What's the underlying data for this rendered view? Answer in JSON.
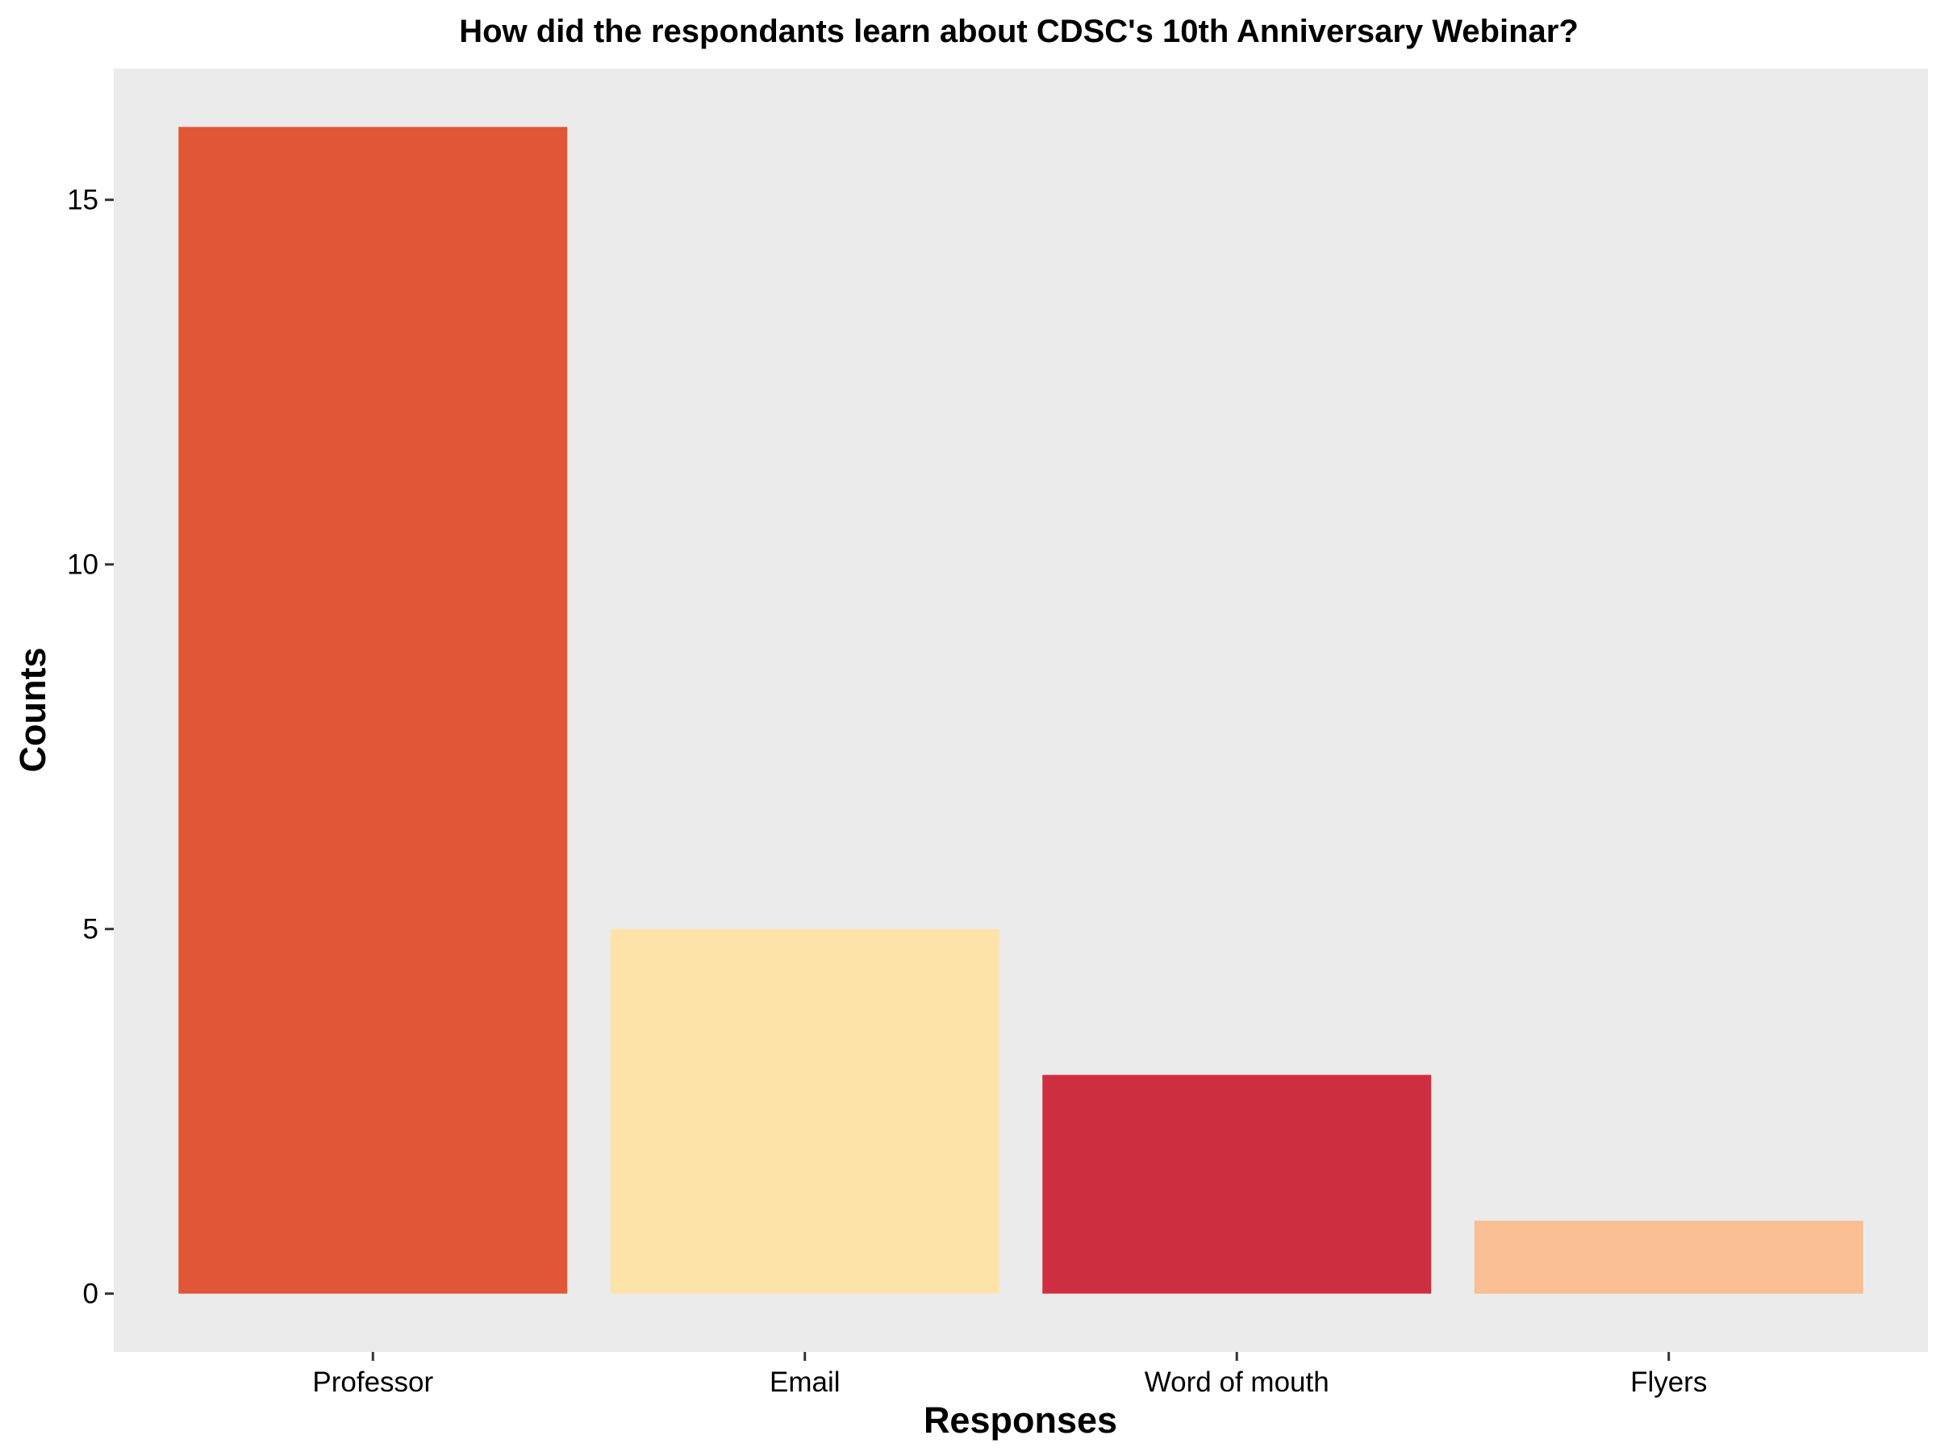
{
  "chart_data": {
    "type": "bar",
    "title": "How did the respondants learn about CDSC's 10th Anniversary Webinar?",
    "xlabel": "Responses",
    "ylabel": "Counts",
    "categories": [
      "Professor",
      "Email",
      "Word of mouth",
      "Flyers"
    ],
    "values": [
      16,
      5,
      3,
      1
    ],
    "colors": [
      "#E15636",
      "#FEE3A9",
      "#CD2F40",
      "#F9BE91"
    ],
    "yticks": [
      0,
      5,
      10,
      15
    ],
    "ylim": [
      -0.8,
      16.8
    ],
    "panel_background": "#EBEBEB",
    "grid": false,
    "legend": "none"
  }
}
